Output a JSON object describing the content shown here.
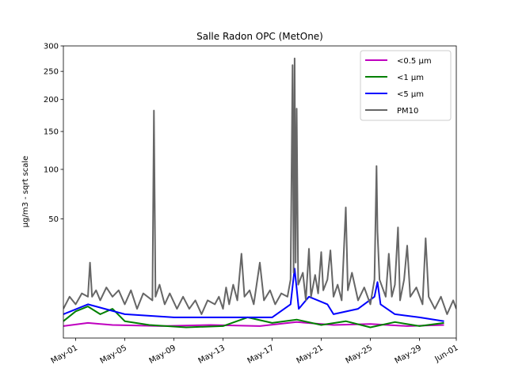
{
  "chart_data": {
    "type": "line",
    "title": "Salle Radon OPC (MetOne)",
    "xlabel": "",
    "ylabel": "µg/m3 - sqrt scale",
    "y_scale": "sqrt",
    "ylim": [
      0,
      300
    ],
    "xlim": [
      "2023-04-30",
      "2023-06-01"
    ],
    "y_ticks": [
      50,
      100,
      150,
      200,
      250,
      300
    ],
    "x_ticks": [
      {
        "date": "2023-05-01",
        "label": "May-01"
      },
      {
        "date": "2023-05-05",
        "label": "May-05"
      },
      {
        "date": "2023-05-09",
        "label": "May-09"
      },
      {
        "date": "2023-05-13",
        "label": "May-13"
      },
      {
        "date": "2023-05-17",
        "label": "May-17"
      },
      {
        "date": "2023-05-21",
        "label": "May-21"
      },
      {
        "date": "2023-05-25",
        "label": "May-25"
      },
      {
        "date": "2023-05-29",
        "label": "May-29"
      },
      {
        "date": "2023-06-01",
        "label": "Jun-01"
      }
    ],
    "legend_position": "top-right",
    "grid": false,
    "series": [
      {
        "name": "<0.5 µm",
        "color": "#bf00bf",
        "points": [
          [
            "2023-04-30T00:00",
            0.5
          ],
          [
            "2023-05-02T00:00",
            0.8
          ],
          [
            "2023-05-04T00:00",
            0.6
          ],
          [
            "2023-05-08T00:00",
            0.5
          ],
          [
            "2023-05-12T00:00",
            0.6
          ],
          [
            "2023-05-16T00:00",
            0.5
          ],
          [
            "2023-05-19T00:00",
            0.9
          ],
          [
            "2023-05-22T00:00",
            0.6
          ],
          [
            "2023-05-25T00:00",
            0.7
          ],
          [
            "2023-05-28T00:00",
            0.5
          ],
          [
            "2023-05-31T00:00",
            0.6
          ]
        ]
      },
      {
        "name": "<1 µm",
        "color": "#008000",
        "points": [
          [
            "2023-04-30T00:00",
            1.0
          ],
          [
            "2023-05-01T00:00",
            2.5
          ],
          [
            "2023-05-02T00:00",
            3.5
          ],
          [
            "2023-05-03T00:00",
            2.0
          ],
          [
            "2023-05-04T00:00",
            3.0
          ],
          [
            "2023-05-05T00:00",
            1.0
          ],
          [
            "2023-05-07T00:00",
            0.6
          ],
          [
            "2023-05-10T00:00",
            0.4
          ],
          [
            "2023-05-13T00:00",
            0.5
          ],
          [
            "2023-05-15T00:00",
            1.5
          ],
          [
            "2023-05-17T00:00",
            0.8
          ],
          [
            "2023-05-19T00:00",
            1.2
          ],
          [
            "2023-05-21T00:00",
            0.6
          ],
          [
            "2023-05-23T00:00",
            1.0
          ],
          [
            "2023-05-25T00:00",
            0.4
          ],
          [
            "2023-05-27T00:00",
            0.9
          ],
          [
            "2023-05-29T00:00",
            0.5
          ],
          [
            "2023-05-31T00:00",
            0.8
          ]
        ]
      },
      {
        "name": "<5 µm",
        "color": "#0000ff",
        "points": [
          [
            "2023-04-30T00:00",
            2.0
          ],
          [
            "2023-05-02T00:00",
            4.0
          ],
          [
            "2023-05-05T00:00",
            2.0
          ],
          [
            "2023-05-09T00:00",
            1.5
          ],
          [
            "2023-05-13T00:00",
            1.5
          ],
          [
            "2023-05-17T00:00",
            1.5
          ],
          [
            "2023-05-18T12:00",
            4.0
          ],
          [
            "2023-05-18T20:00",
            17.0
          ],
          [
            "2023-05-19T04:00",
            3.0
          ],
          [
            "2023-05-20T00:00",
            6.0
          ],
          [
            "2023-05-21T12:00",
            4.0
          ],
          [
            "2023-05-22T00:00",
            2.0
          ],
          [
            "2023-05-24T00:00",
            3.0
          ],
          [
            "2023-05-25T08:00",
            6.0
          ],
          [
            "2023-05-25T14:00",
            11.0
          ],
          [
            "2023-05-25T20:00",
            4.0
          ],
          [
            "2023-05-27T00:00",
            2.0
          ],
          [
            "2023-05-29T00:00",
            1.5
          ],
          [
            "2023-05-31T00:00",
            1.0
          ]
        ]
      },
      {
        "name": "PM10",
        "color": "#666666",
        "points": [
          [
            "2023-04-30T00:00",
            3.0
          ],
          [
            "2023-04-30T12:00",
            6.0
          ],
          [
            "2023-05-01T00:00",
            4.0
          ],
          [
            "2023-05-01T12:00",
            7.0
          ],
          [
            "2023-05-02T00:00",
            6.0
          ],
          [
            "2023-05-02T04:00",
            20.0
          ],
          [
            "2023-05-02T08:00",
            6.0
          ],
          [
            "2023-05-02T16:00",
            8.0
          ],
          [
            "2023-05-03T00:00",
            5.0
          ],
          [
            "2023-05-03T12:00",
            9.0
          ],
          [
            "2023-05-04T00:00",
            6.0
          ],
          [
            "2023-05-04T12:00",
            8.0
          ],
          [
            "2023-05-05T00:00",
            4.0
          ],
          [
            "2023-05-05T12:00",
            8.0
          ],
          [
            "2023-05-06T00:00",
            3.0
          ],
          [
            "2023-05-06T12:00",
            7.0
          ],
          [
            "2023-05-07T06:00",
            5.0
          ],
          [
            "2023-05-07T09:00",
            182.0
          ],
          [
            "2023-05-07T12:00",
            6.0
          ],
          [
            "2023-05-07T20:00",
            10.0
          ],
          [
            "2023-05-08T06:00",
            4.0
          ],
          [
            "2023-05-08T16:00",
            7.0
          ],
          [
            "2023-05-09T06:00",
            3.0
          ],
          [
            "2023-05-09T18:00",
            6.0
          ],
          [
            "2023-05-10T06:00",
            3.0
          ],
          [
            "2023-05-10T18:00",
            5.0
          ],
          [
            "2023-05-11T06:00",
            2.0
          ],
          [
            "2023-05-11T18:00",
            5.0
          ],
          [
            "2023-05-12T08:00",
            4.0
          ],
          [
            "2023-05-12T16:00",
            6.0
          ],
          [
            "2023-05-13T00:00",
            3.0
          ],
          [
            "2023-05-13T06:00",
            9.0
          ],
          [
            "2023-05-13T12:00",
            4.0
          ],
          [
            "2023-05-13T20:00",
            10.0
          ],
          [
            "2023-05-14T04:00",
            5.0
          ],
          [
            "2023-05-14T12:00",
            25.0
          ],
          [
            "2023-05-14T18:00",
            6.0
          ],
          [
            "2023-05-15T04:00",
            8.0
          ],
          [
            "2023-05-15T12:00",
            4.0
          ],
          [
            "2023-05-16T00:00",
            20.0
          ],
          [
            "2023-05-16T08:00",
            5.0
          ],
          [
            "2023-05-16T20:00",
            8.0
          ],
          [
            "2023-05-17T06:00",
            4.0
          ],
          [
            "2023-05-17T18:00",
            7.0
          ],
          [
            "2023-05-18T06:00",
            6.0
          ],
          [
            "2023-05-18T12:00",
            12.0
          ],
          [
            "2023-05-18T16:00",
            262.0
          ],
          [
            "2023-05-18T18:00",
            15.0
          ],
          [
            "2023-05-18T20:00",
            275.0
          ],
          [
            "2023-05-18T22:00",
            20.0
          ],
          [
            "2023-05-19T00:00",
            185.0
          ],
          [
            "2023-05-19T03:00",
            10.0
          ],
          [
            "2023-05-19T12:00",
            15.0
          ],
          [
            "2023-05-19T18:00",
            5.0
          ],
          [
            "2023-05-20T00:00",
            28.0
          ],
          [
            "2023-05-20T04:00",
            6.0
          ],
          [
            "2023-05-20T12:00",
            14.0
          ],
          [
            "2023-05-20T18:00",
            7.0
          ],
          [
            "2023-05-21T00:00",
            26.0
          ],
          [
            "2023-05-21T04:00",
            8.0
          ],
          [
            "2023-05-21T12:00",
            12.0
          ],
          [
            "2023-05-21T18:00",
            27.0
          ],
          [
            "2023-05-22T00:00",
            6.0
          ],
          [
            "2023-05-22T08:00",
            10.0
          ],
          [
            "2023-05-22T16:00",
            5.0
          ],
          [
            "2023-05-23T00:00",
            60.0
          ],
          [
            "2023-05-23T04:00",
            8.0
          ],
          [
            "2023-05-23T12:00",
            15.0
          ],
          [
            "2023-05-24T00:00",
            5.0
          ],
          [
            "2023-05-24T12:00",
            9.0
          ],
          [
            "2023-05-25T00:00",
            4.0
          ],
          [
            "2023-05-25T08:00",
            12.0
          ],
          [
            "2023-05-25T12:00",
            104.0
          ],
          [
            "2023-05-25T14:00",
            40.0
          ],
          [
            "2023-05-25T18:00",
            12.0
          ],
          [
            "2023-05-26T06:00",
            6.0
          ],
          [
            "2023-05-26T12:00",
            25.0
          ],
          [
            "2023-05-26T18:00",
            6.0
          ],
          [
            "2023-05-27T00:00",
            10.0
          ],
          [
            "2023-05-27T06:00",
            43.0
          ],
          [
            "2023-05-27T10:00",
            5.0
          ],
          [
            "2023-05-27T18:00",
            12.0
          ],
          [
            "2023-05-28T00:00",
            30.0
          ],
          [
            "2023-05-28T06:00",
            6.0
          ],
          [
            "2023-05-28T18:00",
            9.0
          ],
          [
            "2023-05-29T06:00",
            4.0
          ],
          [
            "2023-05-29T12:00",
            35.0
          ],
          [
            "2023-05-29T18:00",
            6.0
          ],
          [
            "2023-05-30T06:00",
            3.0
          ],
          [
            "2023-05-30T18:00",
            6.0
          ],
          [
            "2023-05-31T06:00",
            2.0
          ],
          [
            "2023-05-31T18:00",
            5.0
          ],
          [
            "2023-06-01T00:00",
            3.0
          ]
        ]
      }
    ]
  }
}
